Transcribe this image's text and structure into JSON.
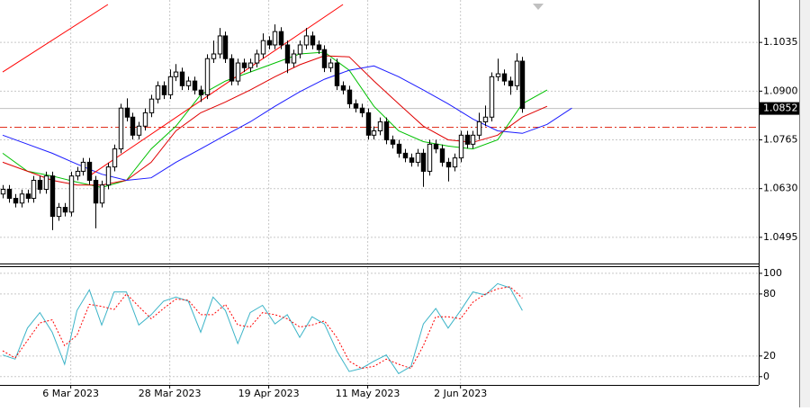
{
  "chart_data": [
    {
      "type": "candlestick",
      "xlim": [
        -0.44,
        122.2
      ],
      "ylim": [
        1.04225,
        1.11525
      ],
      "yticks": [
        1.1035,
        {
          "value": 1.09,
          "label": "1.0900"
        },
        1.0765,
        {
          "value": 1.063,
          "label": "1.0630"
        },
        1.0495
      ],
      "grid": true,
      "bull_color": "#ffffff",
      "bear_color": "#000000",
      "outline_color": "#000000",
      "open": [
        1.0615,
        1.0628,
        1.0603,
        1.059,
        1.0615,
        1.0603,
        1.0653,
        1.0628,
        1.0665,
        1.0553,
        1.0578,
        1.0565,
        1.0665,
        1.0678,
        1.0703,
        1.0653,
        1.059,
        1.064,
        1.069,
        1.074,
        1.0853,
        1.0828,
        1.0778,
        1.0803,
        1.084,
        1.0878,
        1.0915,
        1.089,
        1.094,
        1.0953,
        1.0915,
        1.0928,
        1.0903,
        1.089,
        1.099,
        1.1003,
        1.1053,
        1.099,
        1.0928,
        1.0978,
        1.0965,
        1.0978,
        1.1003,
        1.104,
        1.1028,
        1.1065,
        1.1028,
        1.0978,
        1.1003,
        1.1028,
        1.1053,
        1.1028,
        1.1015,
        1.0965,
        1.0978,
        1.0915,
        1.0903,
        1.0865,
        1.0853,
        1.084,
        1.0778,
        1.079,
        1.0815,
        1.0765,
        1.0753,
        1.0728,
        1.0715,
        1.0703,
        1.0728,
        1.0678,
        1.0753,
        1.074,
        1.0703,
        1.069,
        1.0715,
        1.0778,
        1.0753,
        1.0778,
        1.0815,
        1.0828,
        1.094,
        1.0948,
        1.0928,
        1.0915,
        1.0983
      ],
      "high": [
        1.064,
        1.064,
        1.0615,
        1.0627,
        1.0627,
        1.0665,
        1.0665,
        1.0677,
        1.0677,
        1.059,
        1.059,
        1.0677,
        1.069,
        1.0715,
        1.0715,
        1.0665,
        1.0652,
        1.0702,
        1.0752,
        1.0865,
        1.088,
        1.084,
        1.0815,
        1.0852,
        1.089,
        1.0927,
        1.0927,
        1.096,
        1.0975,
        1.0965,
        1.094,
        1.094,
        1.0915,
        1.1002,
        1.104,
        1.1075,
        1.1065,
        1.1002,
        1.099,
        1.099,
        1.099,
        1.1015,
        1.106,
        1.1052,
        1.1085,
        1.1077,
        1.104,
        1.1015,
        1.104,
        1.1075,
        1.1065,
        1.104,
        1.1027,
        1.099,
        1.099,
        1.0927,
        1.0915,
        1.0877,
        1.0865,
        1.0852,
        1.0802,
        1.0827,
        1.0827,
        1.0777,
        1.0765,
        1.074,
        1.0727,
        1.074,
        1.074,
        1.0765,
        1.0765,
        1.0752,
        1.0715,
        1.0727,
        1.079,
        1.079,
        1.079,
        1.084,
        1.086,
        1.0952,
        1.099,
        1.096,
        1.094,
        1.1005,
        1.0995
      ],
      "low": [
        1.0603,
        1.0591,
        1.0578,
        1.0578,
        1.0591,
        1.0591,
        1.0616,
        1.0616,
        1.0515,
        1.0541,
        1.0553,
        1.0553,
        1.0653,
        1.0666,
        1.0641,
        1.052,
        1.0578,
        1.0628,
        1.0678,
        1.0728,
        1.0816,
        1.0766,
        1.0766,
        1.0791,
        1.0828,
        1.0866,
        1.0878,
        1.0878,
        1.0928,
        1.0903,
        1.0903,
        1.0891,
        1.087,
        1.0878,
        1.0978,
        1.0991,
        1.0978,
        1.0916,
        1.0916,
        1.0953,
        1.0953,
        1.0966,
        1.0991,
        1.1016,
        1.1016,
        1.1016,
        1.095,
        1.0966,
        1.0991,
        1.1016,
        1.1016,
        1.1003,
        1.0953,
        1.0953,
        1.0903,
        1.0891,
        1.0853,
        1.0841,
        1.0828,
        1.0766,
        1.0766,
        1.0778,
        1.0753,
        1.0741,
        1.0716,
        1.0703,
        1.0691,
        1.0691,
        1.0635,
        1.0666,
        1.0728,
        1.0691,
        1.065,
        1.0678,
        1.0703,
        1.0741,
        1.0741,
        1.0766,
        1.0803,
        1.0816,
        1.0928,
        1.0916,
        1.089,
        1.0903,
        1.084
      ],
      "close": [
        1.0628,
        1.0603,
        1.059,
        1.0615,
        1.0603,
        1.0653,
        1.0628,
        1.0665,
        1.0553,
        1.0578,
        1.0565,
        1.0665,
        1.0678,
        1.0703,
        1.0653,
        1.059,
        1.064,
        1.069,
        1.074,
        1.0853,
        1.0828,
        1.0778,
        1.0803,
        1.084,
        1.0878,
        1.0915,
        1.089,
        1.094,
        1.0953,
        1.0915,
        1.0928,
        1.0903,
        1.089,
        1.099,
        1.1003,
        1.1053,
        1.099,
        1.0928,
        1.0978,
        1.0965,
        1.0978,
        1.1003,
        1.104,
        1.1028,
        1.1065,
        1.1028,
        1.0978,
        1.1003,
        1.1028,
        1.1053,
        1.1028,
        1.1015,
        1.0965,
        1.0978,
        1.0915,
        1.0903,
        1.0865,
        1.0853,
        1.084,
        1.0778,
        1.079,
        1.0815,
        1.0765,
        1.0753,
        1.0728,
        1.0715,
        1.0703,
        1.0728,
        1.0678,
        1.0753,
        1.074,
        1.0703,
        1.069,
        1.0715,
        1.0778,
        1.0753,
        1.0778,
        1.0815,
        1.0828,
        1.094,
        1.0948,
        1.0928,
        1.0915,
        1.0983,
        1.0852
      ],
      "lines": [
        {
          "color": "#00c000",
          "x": [
            0,
            4,
            8,
            12,
            16,
            20,
            24,
            28,
            32,
            36,
            40,
            44,
            48,
            52,
            56,
            60,
            64,
            68,
            72,
            76,
            80,
            84,
            88
          ],
          "values": [
            1.0728,
            1.0678,
            1.0665,
            1.0648,
            1.0633,
            1.0653,
            1.074,
            1.0803,
            1.089,
            1.0928,
            1.0953,
            1.0978,
            1.1003,
            1.1008,
            1.0958,
            1.0858,
            1.079,
            1.076,
            1.0748,
            1.074,
            1.0765,
            1.0865,
            1.0903
          ]
        },
        {
          "color": "#e00000",
          "x": [
            0,
            4,
            8,
            12,
            16,
            20,
            24,
            28,
            32,
            36,
            40,
            44,
            48,
            52,
            56,
            60,
            64,
            68,
            72,
            76,
            80,
            84,
            88
          ],
          "values": [
            1.0703,
            1.0678,
            1.0653,
            1.064,
            1.064,
            1.0653,
            1.0703,
            1.079,
            1.084,
            1.087,
            1.0903,
            1.094,
            1.0973,
            1.0998,
            1.0995,
            1.0928,
            1.0865,
            1.0803,
            1.0765,
            1.0758,
            1.0778,
            1.0828,
            1.0858
          ]
        },
        {
          "color": "#1a1aff",
          "x": [
            0,
            4,
            8,
            12,
            16,
            20,
            24,
            28,
            32,
            36,
            40,
            44,
            48,
            52,
            56,
            60,
            64,
            68,
            72,
            76,
            80,
            84,
            88,
            92
          ],
          "values": [
            1.0778,
            1.0753,
            1.0728,
            1.0698,
            1.067,
            1.0653,
            1.066,
            1.0703,
            1.074,
            1.0778,
            1.0815,
            1.0858,
            1.0898,
            1.0933,
            1.0958,
            1.097,
            1.094,
            1.0903,
            1.0865,
            1.0823,
            1.079,
            1.0783,
            1.0808,
            1.0853
          ]
        }
      ],
      "trendlines": [
        {
          "color": "#ff0000",
          "x": [
            0,
            17
          ],
          "values": [
            1.0953,
            1.114
          ]
        },
        {
          "color": "#ff0000",
          "x": [
            14,
            55
          ],
          "values": [
            1.0665,
            1.114
          ]
        }
      ],
      "hlines": [
        {
          "value": 1.0852,
          "color": "#c0c0c0",
          "price_label": true
        },
        {
          "value": 1.08,
          "color": "#e0301e",
          "style": "dashdot"
        }
      ]
    },
    {
      "type": "line",
      "xlim": [
        -0.44,
        122.2
      ],
      "ylim": [
        -8,
        106
      ],
      "yticks": [
        100,
        80,
        20,
        0
      ],
      "grid": true,
      "xticks": [
        {
          "value": 11,
          "label": "6 Mar 2023"
        },
        {
          "value": 27,
          "label": "28 Mar 2023"
        },
        {
          "value": 43,
          "label": "19 Apr 2023"
        },
        {
          "value": 59,
          "label": "11 May 2023"
        },
        {
          "value": 74,
          "label": "2 Jun 2023"
        }
      ],
      "x": [
        0,
        2,
        4,
        6,
        8,
        10,
        12,
        14,
        16,
        18,
        20,
        22,
        24,
        26,
        28,
        30,
        32,
        34,
        36,
        38,
        40,
        42,
        44,
        46,
        48,
        50,
        52,
        54,
        56,
        58,
        60,
        62,
        64,
        66,
        68,
        70,
        72,
        74,
        76,
        78,
        80,
        82,
        84
      ],
      "series": [
        {
          "color": "#3cb4c8",
          "values": [
            21,
            17,
            47,
            62,
            43,
            12,
            64,
            84,
            50,
            82,
            82,
            50,
            60,
            73,
            77,
            73,
            43,
            77,
            64,
            32,
            62,
            69,
            51,
            60,
            38,
            58,
            51,
            25,
            5,
            8,
            15,
            21,
            3,
            10,
            51,
            66,
            47,
            64,
            82,
            79,
            90,
            86,
            64
          ]
        },
        {
          "color": "#ff0000",
          "dash": true,
          "values": [
            25,
            18,
            35,
            52,
            55,
            30,
            40,
            70,
            68,
            65,
            80,
            68,
            56,
            66,
            75,
            74,
            60,
            60,
            70,
            50,
            48,
            62,
            60,
            56,
            48,
            50,
            54,
            38,
            15,
            8,
            10,
            17,
            12,
            8,
            30,
            58,
            58,
            56,
            72,
            80,
            85,
            87,
            76
          ]
        }
      ]
    }
  ]
}
